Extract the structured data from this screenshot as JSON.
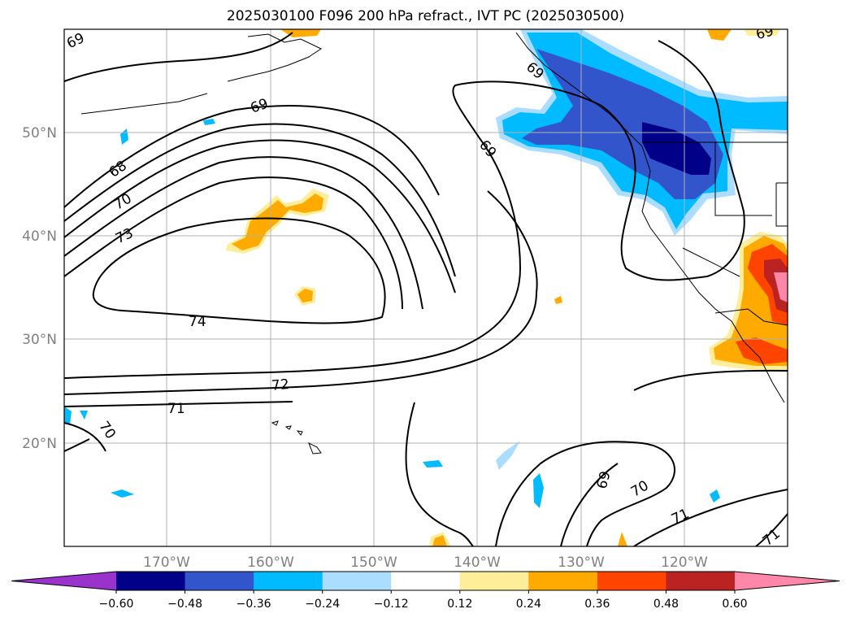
{
  "title": "2025030100 F096 200 hPa refract., IVT PC (2025030500)",
  "axes": {
    "lat_labels": [
      "50°N",
      "40°N",
      "30°N",
      "20°N"
    ],
    "lon_labels": [
      "170°W",
      "160°W",
      "150°W",
      "140°W",
      "130°W",
      "120°W"
    ],
    "grid": true
  },
  "colorbar": {
    "ticks": [
      "−0.60",
      "−0.48",
      "−0.36",
      "−0.24",
      "−0.12",
      "0.12",
      "0.24",
      "0.36",
      "0.48",
      "0.60"
    ],
    "colors": [
      "#9933cc",
      "#000088",
      "#3355cc",
      "#00bbff",
      "#aaddff",
      "#ffffff",
      "#ffee99",
      "#ffaa00",
      "#ff4400",
      "#bb2222",
      "#ff88aa"
    ],
    "extend": "both"
  },
  "contour_labels": [
    {
      "text": "69"
    },
    {
      "text": "69"
    },
    {
      "text": "69"
    },
    {
      "text": "69"
    },
    {
      "text": "69"
    },
    {
      "text": "68"
    },
    {
      "text": "70"
    },
    {
      "text": "73"
    },
    {
      "text": "74"
    },
    {
      "text": "72"
    },
    {
      "text": "71"
    },
    {
      "text": "70"
    },
    {
      "text": "70"
    },
    {
      "text": "71"
    },
    {
      "text": "71"
    },
    {
      "text": "69"
    }
  ]
}
